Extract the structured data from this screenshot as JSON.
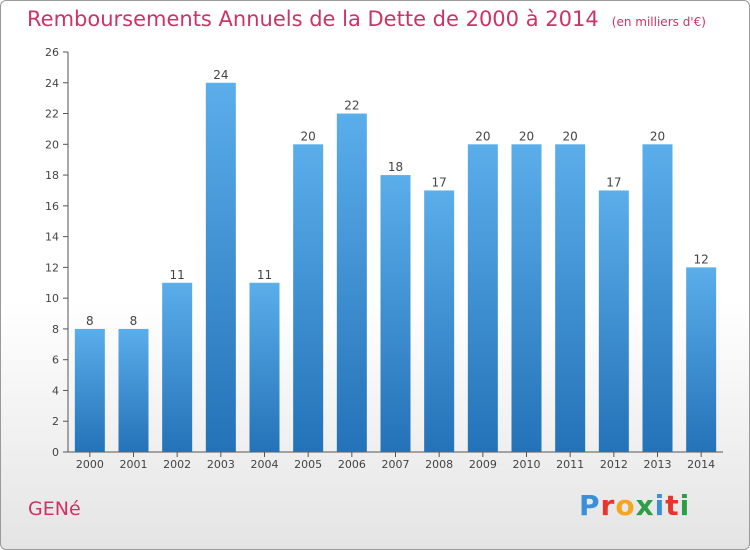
{
  "header": {
    "title": "Remboursements Annuels de la Dette de 2000 à 2014",
    "subtitle": "(en milliers d'€)"
  },
  "footer": {
    "town": "GENé",
    "logo_letters": [
      "P",
      "r",
      "o",
      "x",
      "i",
      "t",
      "i"
    ],
    "logo_colors": [
      "#3a8fd9",
      "#e8342b",
      "#f4a623",
      "#2e9e46",
      "#3a8fd9",
      "#e8342b",
      "#2e9e46"
    ]
  },
  "chart_data": {
    "type": "bar",
    "categories": [
      "2000",
      "2001",
      "2002",
      "2003",
      "2004",
      "2005",
      "2006",
      "2007",
      "2008",
      "2009",
      "2010",
      "2011",
      "2012",
      "2013",
      "2014"
    ],
    "values": [
      8,
      8,
      11,
      24,
      11,
      20,
      22,
      18,
      17,
      20,
      20,
      20,
      17,
      20,
      12
    ],
    "title": "Remboursements Annuels de la Dette de 2000 à 2014",
    "ylim": [
      0,
      26
    ],
    "yticks": [
      0,
      2,
      4,
      6,
      8,
      10,
      12,
      14,
      16,
      18,
      20,
      22,
      24,
      26
    ],
    "grid": false,
    "bar_color": "#3d95dc",
    "bar_color_dark": "#2675bd"
  }
}
